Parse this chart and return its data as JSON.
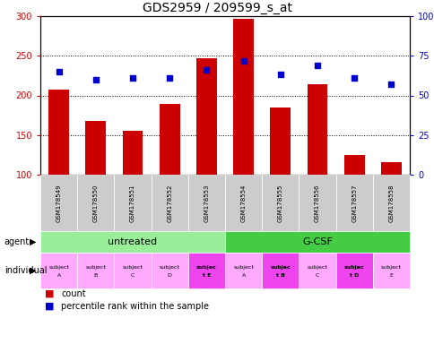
{
  "title": "GDS2959 / 209599_s_at",
  "samples": [
    "GSM178549",
    "GSM178550",
    "GSM178551",
    "GSM178552",
    "GSM178553",
    "GSM178554",
    "GSM178555",
    "GSM178556",
    "GSM178557",
    "GSM178558"
  ],
  "counts": [
    207,
    168,
    155,
    189,
    247,
    297,
    185,
    214,
    125,
    116
  ],
  "percentile_ranks_pct": [
    65,
    60,
    61,
    61,
    66,
    72,
    63,
    69,
    61,
    57
  ],
  "ylim_left": [
    100,
    300
  ],
  "ylim_right": [
    0,
    100
  ],
  "yticks_left": [
    100,
    150,
    200,
    250,
    300
  ],
  "yticks_right": [
    0,
    25,
    50,
    75,
    100
  ],
  "yticklabels_right": [
    "0",
    "25",
    "50",
    "75",
    "100%"
  ],
  "bar_color": "#cc0000",
  "dot_color": "#0000cc",
  "agent_groups": [
    {
      "label": "untreated",
      "start": 0,
      "end": 5,
      "color": "#99ee99"
    },
    {
      "label": "G-CSF",
      "start": 5,
      "end": 10,
      "color": "#44cc44"
    }
  ],
  "individual_labels": [
    [
      "subject",
      "A"
    ],
    [
      "subject",
      "B"
    ],
    [
      "subject",
      "C"
    ],
    [
      "subject",
      "D"
    ],
    [
      "subjec",
      "t E"
    ],
    [
      "subject",
      "A"
    ],
    [
      "subjec",
      "t B"
    ],
    [
      "subject",
      "C"
    ],
    [
      "subjec",
      "t D"
    ],
    [
      "subject",
      "E"
    ]
  ],
  "individual_highlight": [
    4,
    6,
    8
  ],
  "individual_bg_normal": "#ffaaff",
  "individual_bg_highlight": "#ee44ee",
  "tick_label_bg": "#cccccc",
  "legend_count_color": "#cc0000",
  "legend_dot_color": "#0000cc",
  "left_axis_color": "#cc0000",
  "right_axis_color": "#0000cc"
}
